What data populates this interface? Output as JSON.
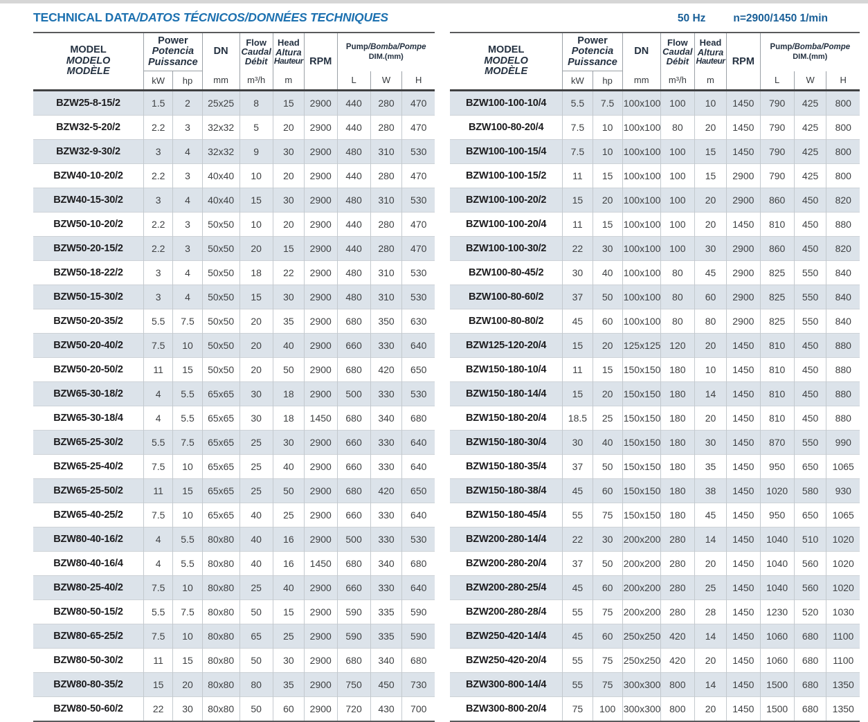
{
  "page": {
    "title_en": "TECHNICAL DATA",
    "title_rest": "/DATOS TÉCNICOS/DONNÉES TECHNIQUES",
    "frequency": "50 Hz",
    "speed": "n=2900/1450 1/min"
  },
  "colors": {
    "title_blue": "#1d71b0",
    "freq_blue": "#175e97",
    "header_navy": "#243141",
    "row_stripe": "#dce3ea"
  },
  "header": {
    "model": [
      "MODEL",
      "MODELO",
      "MODÈLE"
    ],
    "power": [
      "Power",
      "Potencia",
      "Puissance"
    ],
    "dn": "DN",
    "flow": [
      "Flow",
      "Caudal",
      "Débit"
    ],
    "head": [
      "Head",
      "Altura",
      "Hauteur"
    ],
    "rpm": "RPM",
    "pump_en": "Pump",
    "pump_rest": "/Bomba/Pompe",
    "dim": "DIM.(mm)",
    "units": {
      "kw": "kW",
      "hp": "hp",
      "mm": "mm",
      "flow": "m³/h",
      "head": "m",
      "l": "L",
      "w": "W",
      "h": "H"
    }
  },
  "left_table": {
    "rows": [
      [
        "BZW25-8-15/2",
        "1.5",
        "2",
        "25x25",
        "8",
        "15",
        "2900",
        "440",
        "280",
        "470"
      ],
      [
        "BZW32-5-20/2",
        "2.2",
        "3",
        "32x32",
        "5",
        "20",
        "2900",
        "440",
        "280",
        "470"
      ],
      [
        "BZW32-9-30/2",
        "3",
        "4",
        "32x32",
        "9",
        "30",
        "2900",
        "480",
        "310",
        "530"
      ],
      [
        "BZW40-10-20/2",
        "2.2",
        "3",
        "40x40",
        "10",
        "20",
        "2900",
        "440",
        "280",
        "470"
      ],
      [
        "BZW40-15-30/2",
        "3",
        "4",
        "40x40",
        "15",
        "30",
        "2900",
        "480",
        "310",
        "530"
      ],
      [
        "BZW50-10-20/2",
        "2.2",
        "3",
        "50x50",
        "10",
        "20",
        "2900",
        "440",
        "280",
        "470"
      ],
      [
        "BZW50-20-15/2",
        "2.2",
        "3",
        "50x50",
        "20",
        "15",
        "2900",
        "440",
        "280",
        "470"
      ],
      [
        "BZW50-18-22/2",
        "3",
        "4",
        "50x50",
        "18",
        "22",
        "2900",
        "480",
        "310",
        "530"
      ],
      [
        "BZW50-15-30/2",
        "3",
        "4",
        "50x50",
        "15",
        "30",
        "2900",
        "480",
        "310",
        "530"
      ],
      [
        "BZW50-20-35/2",
        "5.5",
        "7.5",
        "50x50",
        "20",
        "35",
        "2900",
        "680",
        "350",
        "630"
      ],
      [
        "BZW50-20-40/2",
        "7.5",
        "10",
        "50x50",
        "20",
        "40",
        "2900",
        "660",
        "330",
        "640"
      ],
      [
        "BZW50-20-50/2",
        "11",
        "15",
        "50x50",
        "20",
        "50",
        "2900",
        "680",
        "420",
        "650"
      ],
      [
        "BZW65-30-18/2",
        "4",
        "5.5",
        "65x65",
        "30",
        "18",
        "2900",
        "500",
        "330",
        "530"
      ],
      [
        "BZW65-30-18/4",
        "4",
        "5.5",
        "65x65",
        "30",
        "18",
        "1450",
        "680",
        "340",
        "680"
      ],
      [
        "BZW65-25-30/2",
        "5.5",
        "7.5",
        "65x65",
        "25",
        "30",
        "2900",
        "660",
        "330",
        "640"
      ],
      [
        "BZW65-25-40/2",
        "7.5",
        "10",
        "65x65",
        "25",
        "40",
        "2900",
        "660",
        "330",
        "640"
      ],
      [
        "BZW65-25-50/2",
        "11",
        "15",
        "65x65",
        "25",
        "50",
        "2900",
        "680",
        "420",
        "650"
      ],
      [
        "BZW65-40-25/2",
        "7.5",
        "10",
        "65x65",
        "40",
        "25",
        "2900",
        "660",
        "330",
        "640"
      ],
      [
        "BZW80-40-16/2",
        "4",
        "5.5",
        "80x80",
        "40",
        "16",
        "2900",
        "500",
        "330",
        "530"
      ],
      [
        "BZW80-40-16/4",
        "4",
        "5.5",
        "80x80",
        "40",
        "16",
        "1450",
        "680",
        "340",
        "680"
      ],
      [
        "BZW80-25-40/2",
        "7.5",
        "10",
        "80x80",
        "25",
        "40",
        "2900",
        "660",
        "330",
        "640"
      ],
      [
        "BZW80-50-15/2",
        "5.5",
        "7.5",
        "80x80",
        "50",
        "15",
        "2900",
        "590",
        "335",
        "590"
      ],
      [
        "BZW80-65-25/2",
        "7.5",
        "10",
        "80x80",
        "65",
        "25",
        "2900",
        "590",
        "335",
        "590"
      ],
      [
        "BZW80-50-30/2",
        "11",
        "15",
        "80x80",
        "50",
        "30",
        "2900",
        "680",
        "340",
        "680"
      ],
      [
        "BZW80-80-35/2",
        "15",
        "20",
        "80x80",
        "80",
        "35",
        "2900",
        "750",
        "450",
        "730"
      ],
      [
        "BZW80-50-60/2",
        "22",
        "30",
        "80x80",
        "50",
        "60",
        "2900",
        "720",
        "430",
        "700"
      ]
    ]
  },
  "right_table": {
    "rows": [
      [
        "BZW100-100-10/4",
        "5.5",
        "7.5",
        "100x100",
        "100",
        "10",
        "1450",
        "790",
        "425",
        "800"
      ],
      [
        "BZW100-80-20/4",
        "7.5",
        "10",
        "100x100",
        "80",
        "20",
        "1450",
        "790",
        "425",
        "800"
      ],
      [
        "BZW100-100-15/4",
        "7.5",
        "10",
        "100x100",
        "100",
        "15",
        "1450",
        "790",
        "425",
        "800"
      ],
      [
        "BZW100-100-15/2",
        "11",
        "15",
        "100x100",
        "100",
        "15",
        "2900",
        "790",
        "425",
        "800"
      ],
      [
        "BZW100-100-20/2",
        "15",
        "20",
        "100x100",
        "100",
        "20",
        "2900",
        "860",
        "450",
        "820"
      ],
      [
        "BZW100-100-20/4",
        "11",
        "15",
        "100x100",
        "100",
        "20",
        "1450",
        "810",
        "450",
        "880"
      ],
      [
        "BZW100-100-30/2",
        "22",
        "30",
        "100x100",
        "100",
        "30",
        "2900",
        "860",
        "450",
        "820"
      ],
      [
        "BZW100-80-45/2",
        "30",
        "40",
        "100x100",
        "80",
        "45",
        "2900",
        "825",
        "550",
        "840"
      ],
      [
        "BZW100-80-60/2",
        "37",
        "50",
        "100x100",
        "80",
        "60",
        "2900",
        "825",
        "550",
        "840"
      ],
      [
        "BZW100-80-80/2",
        "45",
        "60",
        "100x100",
        "80",
        "80",
        "2900",
        "825",
        "550",
        "840"
      ],
      [
        "BZW125-120-20/4",
        "15",
        "20",
        "125x125",
        "120",
        "20",
        "1450",
        "810",
        "450",
        "880"
      ],
      [
        "BZW150-180-10/4",
        "11",
        "15",
        "150x150",
        "180",
        "10",
        "1450",
        "810",
        "450",
        "880"
      ],
      [
        "BZW150-180-14/4",
        "15",
        "20",
        "150x150",
        "180",
        "14",
        "1450",
        "810",
        "450",
        "880"
      ],
      [
        "BZW150-180-20/4",
        "18.5",
        "25",
        "150x150",
        "180",
        "20",
        "1450",
        "810",
        "450",
        "880"
      ],
      [
        "BZW150-180-30/4",
        "30",
        "40",
        "150x150",
        "180",
        "30",
        "1450",
        "870",
        "550",
        "990"
      ],
      [
        "BZW150-180-35/4",
        "37",
        "50",
        "150x150",
        "180",
        "35",
        "1450",
        "950",
        "650",
        "1065"
      ],
      [
        "BZW150-180-38/4",
        "45",
        "60",
        "150x150",
        "180",
        "38",
        "1450",
        "1020",
        "580",
        "930"
      ],
      [
        "BZW150-180-45/4",
        "55",
        "75",
        "150x150",
        "180",
        "45",
        "1450",
        "950",
        "650",
        "1065"
      ],
      [
        "BZW200-280-14/4",
        "22",
        "30",
        "200x200",
        "280",
        "14",
        "1450",
        "1040",
        "510",
        "1020"
      ],
      [
        "BZW200-280-20/4",
        "37",
        "50",
        "200x200",
        "280",
        "20",
        "1450",
        "1040",
        "560",
        "1020"
      ],
      [
        "BZW200-280-25/4",
        "45",
        "60",
        "200x200",
        "280",
        "25",
        "1450",
        "1040",
        "560",
        "1020"
      ],
      [
        "BZW200-280-28/4",
        "55",
        "75",
        "200x200",
        "280",
        "28",
        "1450",
        "1230",
        "520",
        "1030"
      ],
      [
        "BZW250-420-14/4",
        "45",
        "60",
        "250x250",
        "420",
        "14",
        "1450",
        "1060",
        "680",
        "1100"
      ],
      [
        "BZW250-420-20/4",
        "55",
        "75",
        "250x250",
        "420",
        "20",
        "1450",
        "1060",
        "680",
        "1100"
      ],
      [
        "BZW300-800-14/4",
        "55",
        "75",
        "300x300",
        "800",
        "14",
        "1450",
        "1500",
        "680",
        "1350"
      ],
      [
        "BZW300-800-20/4",
        "75",
        "100",
        "300x300",
        "800",
        "20",
        "1450",
        "1500",
        "680",
        "1350"
      ]
    ]
  }
}
